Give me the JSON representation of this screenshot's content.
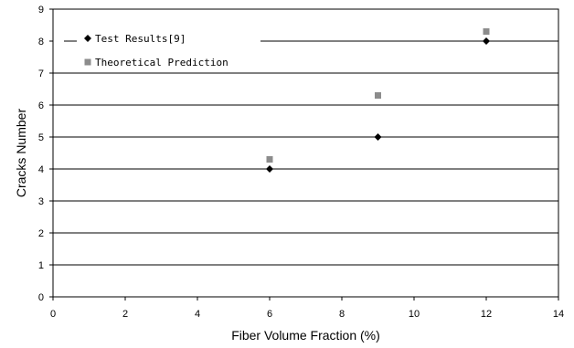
{
  "chart_data": {
    "type": "scatter",
    "xlabel": "Fiber Volume Fraction (%)",
    "ylabel": "Cracks Number",
    "xlim": [
      0,
      14
    ],
    "ylim": [
      0,
      9
    ],
    "xticks": [
      0,
      2,
      4,
      6,
      8,
      10,
      12,
      14
    ],
    "yticks": [
      0,
      1,
      2,
      3,
      4,
      5,
      6,
      7,
      8,
      9
    ],
    "grid": "horizontal",
    "legend_position": "top-left",
    "series": [
      {
        "name": "Test Results[9]",
        "marker": "diamond",
        "color": "#000000",
        "x": [
          6,
          9,
          12
        ],
        "y": [
          4,
          5,
          8
        ]
      },
      {
        "name": "Theoretical Prediction",
        "marker": "square",
        "color": "#8c8c8c",
        "x": [
          6,
          9,
          12
        ],
        "y": [
          4.3,
          6.3,
          8.3
        ]
      }
    ]
  }
}
